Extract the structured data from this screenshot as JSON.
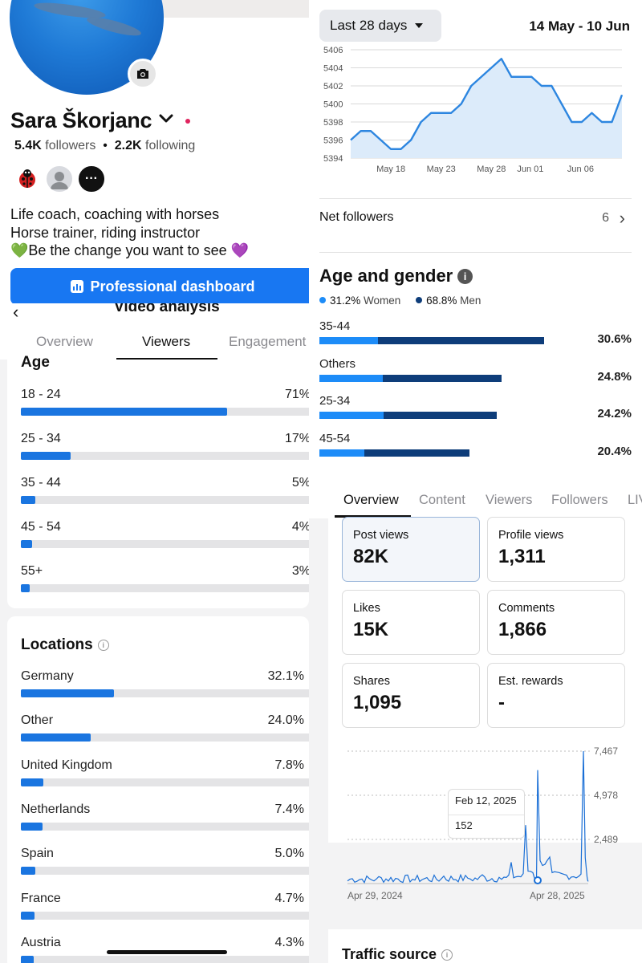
{
  "profile": {
    "name": "Sara Škorjanc",
    "followers_count": "5.4K",
    "followers_label": "followers",
    "separator": "•",
    "following_count": "2.2K",
    "following_label": "following",
    "friend_more_label": "···",
    "bio": [
      "Life coach, coaching with horses",
      "Horse trainer, riding instructor",
      "💚Be the change you want to see 💜"
    ],
    "dashboard_button": "Professional dashboard",
    "icons": [
      "camera-icon",
      "chevron-down-icon",
      "dashboard-icon"
    ]
  },
  "video_analysis": {
    "back_icon": "‹",
    "title": "Video analysis",
    "tabs": [
      "Overview",
      "Viewers",
      "Engagement"
    ],
    "active_tab": "Viewers",
    "age": {
      "title": "Age",
      "rows": [
        {
          "label": "18 - 24",
          "pct": "71%",
          "value": 71
        },
        {
          "label": "25 - 34",
          "pct": "17%",
          "value": 17
        },
        {
          "label": "35 - 44",
          "pct": "5%",
          "value": 5
        },
        {
          "label": "45 - 54",
          "pct": "4%",
          "value": 4
        },
        {
          "label": "55+",
          "pct": "3%",
          "value": 3
        }
      ]
    },
    "locations": {
      "title": "Locations",
      "info_icon": "i",
      "rows": [
        {
          "label": "Germany",
          "pct": "32.1%",
          "value": 32.1
        },
        {
          "label": "Other",
          "pct": "24.0%",
          "value": 24.0
        },
        {
          "label": "United Kingdom",
          "pct": "7.8%",
          "value": 7.8
        },
        {
          "label": "Netherlands",
          "pct": "7.4%",
          "value": 7.4
        },
        {
          "label": "Spain",
          "pct": "5.0%",
          "value": 5.0
        },
        {
          "label": "France",
          "pct": "4.7%",
          "value": 4.7
        },
        {
          "label": "Austria",
          "pct": "4.3%",
          "value": 4.3
        }
      ]
    }
  },
  "followers": {
    "range_button": "Last 28 days",
    "date_range": "14 May - 10 Jun",
    "net_followers_label": "Net followers",
    "net_followers_value": "6",
    "chevron": "›",
    "age_gender": {
      "title": "Age and gender",
      "info_icon": "i",
      "women_pct": "31.2%",
      "women_label": "Women",
      "men_pct": "68.8%",
      "men_label": "Men",
      "colors": {
        "women": "#1d8cf8",
        "men": "#0e3d7a"
      },
      "rows": [
        {
          "label": "35-44",
          "pct": "30.6%",
          "value": 30.6,
          "women_share": 0.26
        },
        {
          "label": "Others",
          "pct": "24.8%",
          "value": 24.8,
          "women_share": 0.35
        },
        {
          "label": "25-34",
          "pct": "24.2%",
          "value": 24.2,
          "women_share": 0.36
        },
        {
          "label": "45-54",
          "pct": "20.4%",
          "value": 20.4,
          "women_share": 0.3
        }
      ]
    }
  },
  "overview": {
    "tabs": [
      "Overview",
      "Content",
      "Viewers",
      "Followers",
      "LIV"
    ],
    "active_tab": "Overview",
    "tiles": [
      {
        "label": "Post views",
        "value": "82K",
        "selected": true
      },
      {
        "label": "Profile views",
        "value": "1,311",
        "selected": false
      },
      {
        "label": "Likes",
        "value": "15K",
        "selected": false
      },
      {
        "label": "Comments",
        "value": "1,866",
        "selected": false
      },
      {
        "label": "Shares",
        "value": "1,095",
        "selected": false
      },
      {
        "label": "Est. rewards",
        "value": "-",
        "selected": false
      }
    ],
    "tooltip": {
      "date": "Feb 12, 2025",
      "value": "152"
    },
    "traffic_title": "Traffic source",
    "info_icon": "i"
  },
  "chart_data": [
    {
      "type": "area",
      "title": "",
      "x_tick_labels": [
        "May 18",
        "May 23",
        "May 28",
        "Jun 01",
        "Jun 06"
      ],
      "y_tick_labels": [
        "5394",
        "5396",
        "5398",
        "5400",
        "5402",
        "5404",
        "5406"
      ],
      "ylim": [
        5394,
        5406
      ],
      "x": [
        "May 14",
        "May 15",
        "May 16",
        "May 17",
        "May 18",
        "May 19",
        "May 20",
        "May 21",
        "May 22",
        "May 23",
        "May 24",
        "May 25",
        "May 26",
        "May 27",
        "May 28",
        "May 29",
        "May 30",
        "May 31",
        "Jun 01",
        "Jun 02",
        "Jun 03",
        "Jun 04",
        "Jun 05",
        "Jun 06",
        "Jun 07",
        "Jun 08",
        "Jun 09",
        "Jun 10"
      ],
      "series": [
        {
          "values": [
            5396,
            5397,
            5397,
            5396,
            5395,
            5395,
            5396,
            5398,
            5399,
            5399,
            5399,
            5400,
            5402,
            5403,
            5404,
            5405,
            5403,
            5403,
            5403,
            5402,
            5402,
            5400,
            5398,
            5398,
            5399,
            5398,
            5398,
            5401
          ]
        }
      ],
      "grid": true,
      "color": "#2d86e0"
    },
    {
      "type": "line",
      "title": "",
      "x_tick_labels": [
        "Apr 29, 2024",
        "Apr 28, 2025"
      ],
      "y_tick_labels": [
        "2,489",
        "4,978",
        "7,467"
      ],
      "ylim": [
        0,
        7467
      ],
      "x": [
        "Apr 29, 2024",
        "Jun 2024",
        "Aug 2024",
        "Sep 2024",
        "Oct 2024",
        "Nov 2024",
        "Dec 2024",
        "Jan 2025",
        "Feb 2025",
        "Feb 12, 2025",
        "Feb 2025b",
        "Mar 2025",
        "Apr 10, 2025",
        "Apr 2025",
        "Apr 28, 2025"
      ],
      "series": [
        {
          "values": [
            150,
            260,
            200,
            420,
            300,
            500,
            350,
            1200,
            3300,
            152,
            6400,
            1500,
            7467,
            400,
            120
          ]
        }
      ],
      "grid": true,
      "color": "#1a6fd6"
    }
  ]
}
